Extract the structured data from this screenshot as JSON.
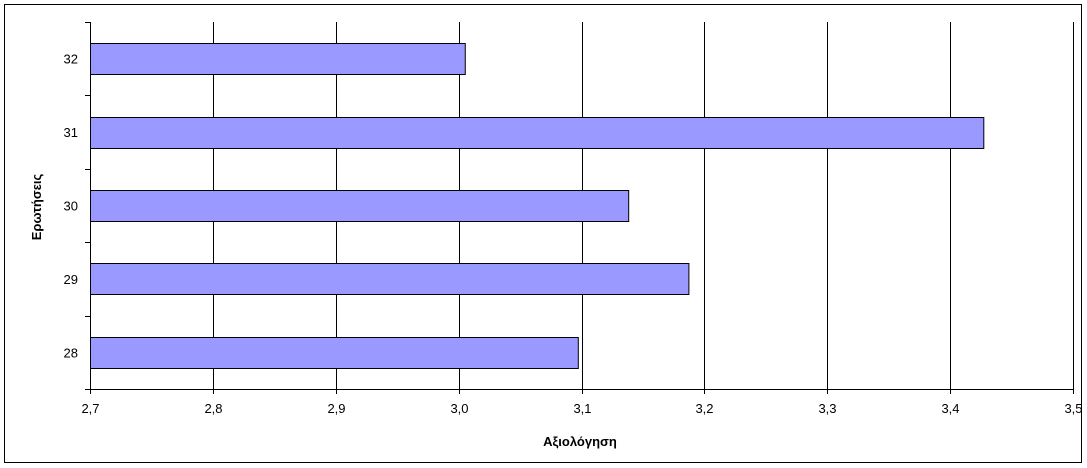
{
  "chart_data": {
    "type": "bar",
    "orientation": "horizontal",
    "categories": [
      "28",
      "29",
      "30",
      "31",
      "32"
    ],
    "values": [
      3.097,
      3.187,
      3.138,
      3.427,
      3.005
    ],
    "xlabel": "Αξιολόγηση",
    "ylabel": "Ερωτήσεις",
    "xlim": [
      2.7,
      3.5
    ],
    "x_ticks": [
      "2,7",
      "2,8",
      "2,9",
      "3,0",
      "3,1",
      "3,2",
      "3,3",
      "3,4",
      "3,5"
    ],
    "grid": "vertical",
    "colors": {
      "bar_fill": "#9999ff",
      "bar_stroke": "#000000",
      "grid": "#000000"
    }
  }
}
